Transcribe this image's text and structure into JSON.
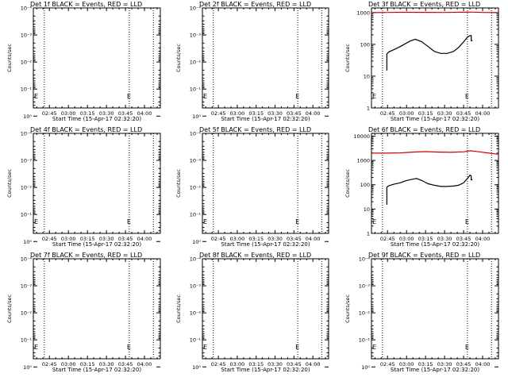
{
  "common": {
    "xlabel": "Start Time (15-Apr-17 02:32:20)",
    "ylabel": "Counts/sec",
    "xtick_labels": [
      "02:45",
      "03:00",
      "03:15",
      "03:30",
      "03:45",
      "04:00"
    ],
    "xtick_minutes": [
      45,
      60,
      75,
      90,
      105,
      120
    ],
    "xlim_minutes": [
      32.33,
      132.5
    ],
    "dotted_lines_minutes": [
      41,
      108,
      127
    ],
    "colors": {
      "events": "#000000",
      "lld": "#d40000"
    },
    "log_tick_labels": [
      "10⁻⁴",
      "10⁻³",
      "10⁻²",
      "10⁻¹",
      "10⁰"
    ],
    "e_label": "E"
  },
  "chart_data": [
    {
      "type": "line",
      "title": "Det 1f BLACK = Events, RED = LLD",
      "log_y": true,
      "empty": true,
      "ytick_values": [
        0.0001,
        0.001,
        0.01,
        0.1,
        1
      ],
      "ylim": [
        0.5,
        0.0001
      ]
    },
    {
      "type": "line",
      "title": "Det 2f BLACK = Events, RED = LLD",
      "log_y": true,
      "empty": true,
      "ytick_values": [
        0.0001,
        0.001,
        0.01,
        0.1,
        1
      ],
      "ylim": [
        0.5,
        0.0001
      ]
    },
    {
      "type": "line",
      "title": "Det 3f BLACK = Events, RED = LLD",
      "log_y": true,
      "empty": false,
      "ytick_values": [
        1,
        10,
        100,
        1000
      ],
      "ytick_labels": [
        "1",
        "10",
        "100",
        "1000"
      ],
      "ylim": [
        1,
        1400
      ],
      "series": [
        {
          "color": "#d40000",
          "x": [
            33,
            45,
            60,
            75,
            90,
            105,
            110,
            120,
            132
          ],
          "y": [
            1000,
            1010,
            1020,
            1015,
            1010,
            1025,
            1040,
            1010,
            1000
          ]
        },
        {
          "color": "#000000",
          "x": [
            44.5,
            44.5,
            46,
            50,
            55,
            60,
            63,
            67,
            72,
            77,
            82,
            87,
            92,
            97,
            101,
            105,
            108,
            109.5,
            111,
            111,
            112
          ],
          "y": [
            15,
            50,
            58,
            68,
            85,
            110,
            128,
            145,
            120,
            85,
            60,
            52,
            52,
            60,
            80,
            120,
            170,
            185,
            190,
            130,
            130
          ]
        }
      ]
    },
    {
      "type": "line",
      "title": "Det 4f BLACK = Events, RED = LLD",
      "log_y": true,
      "empty": true,
      "ytick_values": [
        0.0001,
        0.001,
        0.01,
        0.1,
        1
      ],
      "ylim": [
        0.5,
        0.0001
      ]
    },
    {
      "type": "line",
      "title": "Det 5f BLACK = Events, RED = LLD",
      "log_y": true,
      "empty": true,
      "ytick_values": [
        0.0001,
        0.001,
        0.01,
        0.1,
        1
      ],
      "ylim": [
        0.5,
        0.0001
      ]
    },
    {
      "type": "line",
      "title": "Det 6f BLACK = Events, RED = LLD",
      "log_y": true,
      "empty": false,
      "ytick_values": [
        1,
        10,
        100,
        1000,
        10000
      ],
      "ytick_labels": [
        "1",
        "10",
        "100",
        "1000",
        "10000"
      ],
      "ylim": [
        1,
        13000
      ],
      "series": [
        {
          "color": "#d40000",
          "x": [
            33,
            45,
            55,
            65,
            75,
            85,
            95,
            105,
            110,
            115,
            125,
            132
          ],
          "y": [
            2000,
            2000,
            2050,
            2200,
            2300,
            2200,
            2150,
            2250,
            2500,
            2350,
            2000,
            1800
          ]
        },
        {
          "color": "#000000",
          "x": [
            44.5,
            44.5,
            46,
            50,
            55,
            60,
            65,
            68,
            72,
            77,
            82,
            87,
            92,
            97,
            101,
            105,
            108,
            110,
            111,
            111,
            112
          ],
          "y": [
            15,
            80,
            90,
            105,
            120,
            150,
            170,
            180,
            150,
            110,
            95,
            85,
            85,
            88,
            95,
            120,
            180,
            250,
            230,
            160,
            160
          ]
        }
      ]
    },
    {
      "type": "line",
      "title": "Det 7f BLACK = Events, RED = LLD",
      "log_y": true,
      "empty": true,
      "ytick_values": [
        0.0001,
        0.001,
        0.01,
        0.1,
        1
      ],
      "ylim": [
        0.5,
        0.0001
      ]
    },
    {
      "type": "line",
      "title": "Det 8f BLACK = Events, RED = LLD",
      "log_y": true,
      "empty": true,
      "ytick_values": [
        0.0001,
        0.001,
        0.01,
        0.1,
        1
      ],
      "ylim": [
        0.5,
        0.0001
      ]
    },
    {
      "type": "line",
      "title": "Det 9f BLACK = Events, RED = LLD",
      "log_y": true,
      "empty": true,
      "ytick_values": [
        0.0001,
        0.001,
        0.01,
        0.1,
        1
      ],
      "ylim": [
        0.5,
        0.0001
      ]
    }
  ]
}
